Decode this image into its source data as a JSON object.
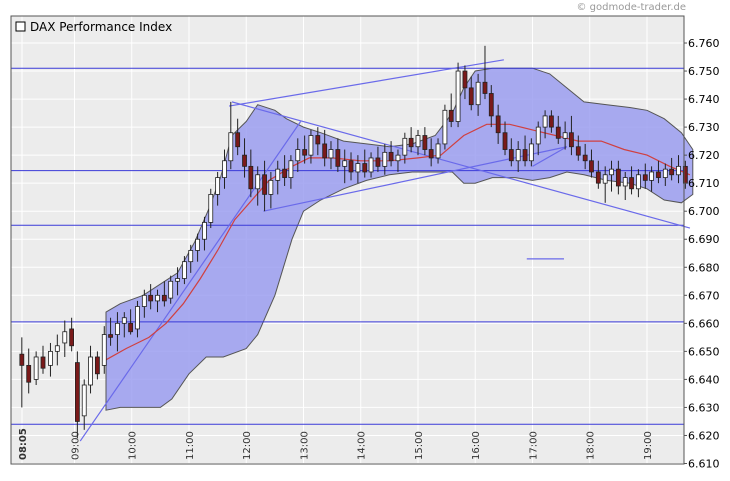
{
  "watermark": "© godmode-trader.de",
  "chart_data": {
    "type": "candlestick",
    "title": "DAX Performance Index",
    "ylim": [
      6610,
      6765
    ],
    "yticks": [
      "6.760",
      "6.750",
      "6.740",
      "6.730",
      "6.720",
      "6.710",
      "6.700",
      "6.690",
      "6.680",
      "6.670",
      "6.660",
      "6.650",
      "6.640",
      "6.630",
      "6.620",
      "6.610"
    ],
    "ytick_values": [
      6760,
      6750,
      6740,
      6730,
      6720,
      6710,
      6700,
      6690,
      6680,
      6670,
      6660,
      6650,
      6640,
      6630,
      6620,
      6610
    ],
    "xticks": [
      "08:05",
      "09:00",
      "10:00",
      "11:00",
      "12:00",
      "13:00",
      "14:00",
      "15:00",
      "16:00",
      "17:00",
      "18:00",
      "19:00"
    ],
    "xtick_hours": [
      8.083,
      9,
      10,
      11,
      12,
      13,
      14,
      15,
      16,
      17,
      18,
      19
    ],
    "x_range_hours": [
      8.0,
      20.1
    ],
    "horizontal_levels": [
      6751,
      6714.5,
      6695,
      6660.5,
      6624
    ],
    "trendlines": [
      {
        "x": [
          11.7,
          16.5
        ],
        "y": [
          6737.5,
          6754
        ]
      },
      {
        "x": [
          11.75,
          19.75
        ],
        "y": [
          6739,
          6694
        ]
      },
      {
        "x": [
          9.1,
          12.95
        ],
        "y": [
          6618,
          6732
        ]
      },
      {
        "x": [
          12.3,
          17.6
        ],
        "y": [
          6700,
          6723
        ]
      },
      {
        "x": [
          17.0,
          17.6
        ],
        "y": [
          6716,
          6723
        ]
      },
      {
        "x": [
          16.9,
          17.55
        ],
        "y": [
          6683,
          6683
        ]
      }
    ],
    "bollinger_upper": [
      [
        9.55,
        6664
      ],
      [
        9.8,
        6667
      ],
      [
        10.2,
        6670
      ],
      [
        10.5,
        6674
      ],
      [
        10.8,
        6678
      ],
      [
        11.1,
        6689
      ],
      [
        11.35,
        6701
      ],
      [
        11.55,
        6712
      ],
      [
        11.75,
        6727
      ],
      [
        12.0,
        6732
      ],
      [
        12.2,
        6738
      ],
      [
        12.5,
        6736
      ],
      [
        12.7,
        6733
      ],
      [
        13.0,
        6730
      ],
      [
        13.3,
        6728
      ],
      [
        13.7,
        6725
      ],
      [
        14.1,
        6724
      ],
      [
        14.5,
        6723
      ],
      [
        14.9,
        6724
      ],
      [
        15.3,
        6727
      ],
      [
        15.6,
        6735
      ],
      [
        15.8,
        6744
      ],
      [
        16.0,
        6750
      ],
      [
        16.3,
        6751
      ],
      [
        16.7,
        6751
      ],
      [
        17.0,
        6751
      ],
      [
        17.3,
        6749
      ],
      [
        17.6,
        6744
      ],
      [
        17.9,
        6739
      ],
      [
        18.3,
        6738
      ],
      [
        18.7,
        6737
      ],
      [
        19.0,
        6736
      ],
      [
        19.3,
        6733
      ],
      [
        19.6,
        6728
      ],
      [
        19.8,
        6722
      ]
    ],
    "bollinger_lower": [
      [
        19.8,
        6706
      ],
      [
        19.6,
        6703
      ],
      [
        19.3,
        6704
      ],
      [
        19.0,
        6708
      ],
      [
        18.7,
        6710
      ],
      [
        18.3,
        6711
      ],
      [
        17.9,
        6713
      ],
      [
        17.6,
        6714
      ],
      [
        17.3,
        6712
      ],
      [
        17.0,
        6711
      ],
      [
        16.7,
        6712
      ],
      [
        16.3,
        6712
      ],
      [
        16.0,
        6710
      ],
      [
        15.8,
        6710
      ],
      [
        15.6,
        6714
      ],
      [
        15.3,
        6714
      ],
      [
        14.9,
        6714
      ],
      [
        14.5,
        6713
      ],
      [
        14.1,
        6711
      ],
      [
        13.7,
        6708
      ],
      [
        13.3,
        6704
      ],
      [
        13.0,
        6700
      ],
      [
        12.8,
        6690
      ],
      [
        12.5,
        6670
      ],
      [
        12.2,
        6656
      ],
      [
        12.0,
        6651
      ],
      [
        11.6,
        6648
      ],
      [
        11.3,
        6648
      ],
      [
        11.0,
        6642
      ],
      [
        10.7,
        6633
      ],
      [
        10.5,
        6630
      ],
      [
        10.1,
        6630
      ],
      [
        9.8,
        6630
      ],
      [
        9.55,
        6629
      ]
    ],
    "moving_average": [
      [
        9.55,
        6647
      ],
      [
        9.9,
        6651
      ],
      [
        10.3,
        6655
      ],
      [
        10.6,
        6660
      ],
      [
        10.9,
        6667
      ],
      [
        11.2,
        6676
      ],
      [
        11.5,
        6686
      ],
      [
        11.8,
        6697
      ],
      [
        12.1,
        6704
      ],
      [
        12.4,
        6711
      ],
      [
        12.8,
        6716
      ],
      [
        13.1,
        6719
      ],
      [
        13.5,
        6719
      ],
      [
        14.0,
        6718
      ],
      [
        14.5,
        6718
      ],
      [
        15.0,
        6719
      ],
      [
        15.4,
        6720
      ],
      [
        15.8,
        6727
      ],
      [
        16.2,
        6731
      ],
      [
        16.6,
        6731
      ],
      [
        17.0,
        6729
      ],
      [
        17.4,
        6727
      ],
      [
        17.8,
        6725
      ],
      [
        18.2,
        6725
      ],
      [
        18.6,
        6722
      ],
      [
        19.0,
        6720
      ],
      [
        19.4,
        6716
      ],
      [
        19.75,
        6713
      ]
    ],
    "candles": [
      [
        8.08,
        6649,
        6655,
        6630,
        6645
      ],
      [
        8.2,
        6645,
        6651,
        6635,
        6639
      ],
      [
        8.33,
        6640,
        6650,
        6638,
        6648
      ],
      [
        8.45,
        6648,
        6652,
        6642,
        6644
      ],
      [
        8.58,
        6645,
        6653,
        6641,
        6650
      ],
      [
        8.7,
        6650,
        6656,
        6645,
        6652
      ],
      [
        8.83,
        6653,
        6661,
        6648,
        6657
      ],
      [
        8.95,
        6658,
        6662,
        6650,
        6652
      ],
      [
        9.05,
        6646,
        6650,
        6619,
        6625
      ],
      [
        9.17,
        6627,
        6640,
        6622,
        6638
      ],
      [
        9.28,
        6638,
        6652,
        6635,
        6648
      ],
      [
        9.4,
        6648,
        6650,
        6640,
        6642
      ],
      [
        9.52,
        6645,
        6659,
        6642,
        6656
      ],
      [
        9.63,
        6656,
        6662,
        6652,
        6655
      ],
      [
        9.75,
        6656,
        6664,
        6650,
        6660
      ],
      [
        9.87,
        6660,
        6664,
        6655,
        6662
      ],
      [
        9.98,
        6660,
        6665,
        6656,
        6657
      ],
      [
        10.1,
        6658,
        6668,
        6655,
        6666
      ],
      [
        10.22,
        6666,
        6672,
        6662,
        6670
      ],
      [
        10.33,
        6670,
        6674,
        6665,
        6668
      ],
      [
        10.45,
        6668,
        6672,
        6664,
        6670
      ],
      [
        10.57,
        6670,
        6675,
        6666,
        6668
      ],
      [
        10.68,
        6669,
        6677,
        6667,
        6675
      ],
      [
        10.8,
        6675,
        6680,
        6670,
        6676
      ],
      [
        10.92,
        6676,
        6684,
        6674,
        6682
      ],
      [
        11.03,
        6682,
        6688,
        6678,
        6686
      ],
      [
        11.15,
        6686,
        6692,
        6682,
        6690
      ],
      [
        11.27,
        6690,
        6698,
        6686,
        6696
      ],
      [
        11.38,
        6696,
        6708,
        6694,
        6706
      ],
      [
        11.5,
        6706,
        6714,
        6702,
        6712
      ],
      [
        11.62,
        6712,
        6722,
        6708,
        6718
      ],
      [
        11.73,
        6718,
        6739,
        6715,
        6728
      ],
      [
        11.85,
        6728,
        6733,
        6720,
        6723
      ],
      [
        11.97,
        6720,
        6726,
        6712,
        6716
      ],
      [
        12.08,
        6716,
        6722,
        6705,
        6708
      ],
      [
        12.2,
        6708,
        6716,
        6702,
        6713
      ],
      [
        12.32,
        6713,
        6718,
        6700,
        6706
      ],
      [
        12.43,
        6706,
        6714,
        6701,
        6711
      ],
      [
        12.55,
        6711,
        6718,
        6706,
        6715
      ],
      [
        12.67,
        6715,
        6720,
        6709,
        6712
      ],
      [
        12.78,
        6712,
        6720,
        6708,
        6718
      ],
      [
        12.9,
        6718,
        6726,
        6714,
        6722
      ],
      [
        13.02,
        6722,
        6727,
        6717,
        6720
      ],
      [
        13.13,
        6720,
        6729,
        6717,
        6727
      ],
      [
        13.25,
        6727,
        6730,
        6720,
        6724
      ],
      [
        13.37,
        6724,
        6729,
        6716,
        6719
      ],
      [
        13.48,
        6719,
        6725,
        6715,
        6722
      ],
      [
        13.6,
        6722,
        6726,
        6714,
        6716
      ],
      [
        13.72,
        6716,
        6722,
        6710,
        6718
      ],
      [
        13.83,
        6718,
        6721,
        6711,
        6714
      ],
      [
        13.95,
        6714,
        6720,
        6710,
        6717
      ],
      [
        14.07,
        6717,
        6722,
        6712,
        6714
      ],
      [
        14.18,
        6714,
        6721,
        6712,
        6719
      ],
      [
        14.3,
        6719,
        6723,
        6714,
        6716
      ],
      [
        14.42,
        6716,
        6724,
        6713,
        6721
      ],
      [
        14.53,
        6721,
        6725,
        6716,
        6718
      ],
      [
        14.65,
        6718,
        6722,
        6714,
        6720
      ],
      [
        14.77,
        6720,
        6728,
        6717,
        6726
      ],
      [
        14.88,
        6726,
        6730,
        6721,
        6723
      ],
      [
        15.0,
        6723,
        6729,
        6720,
        6727
      ],
      [
        15.12,
        6727,
        6730,
        6720,
        6722
      ],
      [
        15.23,
        6722,
        6726,
        6716,
        6719
      ],
      [
        15.35,
        6719,
        6726,
        6717,
        6724
      ],
      [
        15.47,
        6724,
        6738,
        6722,
        6736
      ],
      [
        15.58,
        6736,
        6742,
        6730,
        6732
      ],
      [
        15.7,
        6732,
        6753,
        6730,
        6750
      ],
      [
        15.82,
        6750,
        6752,
        6740,
        6744
      ],
      [
        15.93,
        6744,
        6748,
        6736,
        6738
      ],
      [
        16.05,
        6738,
        6749,
        6734,
        6746
      ],
      [
        16.17,
        6746,
        6759,
        6740,
        6742
      ],
      [
        16.28,
        6742,
        6745,
        6730,
        6734
      ],
      [
        16.4,
        6734,
        6738,
        6724,
        6728
      ],
      [
        16.52,
        6728,
        6732,
        6720,
        6722
      ],
      [
        16.63,
        6722,
        6726,
        6716,
        6718
      ],
      [
        16.75,
        6718,
        6725,
        6714,
        6722
      ],
      [
        16.87,
        6722,
        6727,
        6716,
        6718
      ],
      [
        16.98,
        6718,
        6726,
        6716,
        6724
      ],
      [
        17.1,
        6724,
        6732,
        6720,
        6730
      ],
      [
        17.22,
        6730,
        6736,
        6726,
        6734
      ],
      [
        17.33,
        6734,
        6736,
        6728,
        6730
      ],
      [
        17.45,
        6730,
        6734,
        6724,
        6726
      ],
      [
        17.57,
        6726,
        6732,
        6722,
        6728
      ],
      [
        17.68,
        6728,
        6734,
        6720,
        6723
      ],
      [
        17.8,
        6723,
        6727,
        6718,
        6720
      ],
      [
        17.92,
        6720,
        6724,
        6715,
        6718
      ],
      [
        18.03,
        6718,
        6722,
        6712,
        6714
      ],
      [
        18.15,
        6714,
        6718,
        6708,
        6710
      ],
      [
        18.27,
        6710,
        6716,
        6703,
        6713
      ],
      [
        18.38,
        6713,
        6718,
        6707,
        6715
      ],
      [
        18.5,
        6715,
        6718,
        6706,
        6709
      ],
      [
        18.62,
        6709,
        6714,
        6704,
        6712
      ],
      [
        18.73,
        6712,
        6716,
        6706,
        6708
      ],
      [
        18.85,
        6708,
        6715,
        6705,
        6713
      ],
      [
        18.97,
        6713,
        6717,
        6708,
        6711
      ],
      [
        19.08,
        6711,
        6716,
        6707,
        6714
      ],
      [
        19.2,
        6714,
        6718,
        6710,
        6712
      ],
      [
        19.32,
        6712,
        6717,
        6709,
        6715
      ],
      [
        19.43,
        6715,
        6719,
        6711,
        6713
      ],
      [
        19.55,
        6713,
        6720,
        6710,
        6716
      ],
      [
        19.67,
        6716,
        6718,
        6708,
        6710
      ]
    ],
    "colors": {
      "up": "#ffffff",
      "down": "#7a1a1a",
      "band_fill": "#9b9ef0",
      "band_stroke": "#555555",
      "level_line": "#3a3ad8",
      "trend_line": "#6a6aea",
      "ma_line": "#d04040",
      "plot_bg": "#ececec",
      "grid": "#ffffff"
    }
  }
}
